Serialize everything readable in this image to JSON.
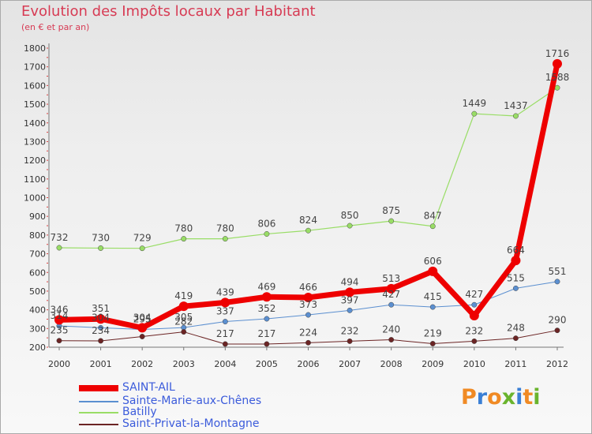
{
  "header": {
    "title": "Evolution des Impôts locaux par Habitant",
    "subtitle": "(en € et par an)"
  },
  "logo": {
    "text": "Proxiti",
    "letters": [
      {
        "ch": "P",
        "color": "#f08a24"
      },
      {
        "ch": "r",
        "color": "#3a7fd5"
      },
      {
        "ch": "o",
        "color": "#f08a24"
      },
      {
        "ch": "x",
        "color": "#6ab42d"
      },
      {
        "ch": "i",
        "color": "#3a7fd5"
      },
      {
        "ch": "t",
        "color": "#f08a24"
      },
      {
        "ch": "i",
        "color": "#6ab42d"
      }
    ]
  },
  "chart_data": {
    "type": "line",
    "title": "Evolution des Impôts locaux par Habitant",
    "subtitle": "(en € et par an)",
    "x": [
      "2000",
      "2001",
      "2002",
      "2003",
      "2004",
      "2005",
      "2006",
      "2007",
      "2008",
      "2009",
      "2010",
      "2011",
      "2012"
    ],
    "ylim": [
      200,
      1800
    ],
    "yticks": [
      200,
      300,
      400,
      500,
      600,
      700,
      800,
      900,
      1000,
      1100,
      1200,
      1300,
      1400,
      1500,
      1600,
      1700,
      1800
    ],
    "grid": false,
    "legend_position": "bottom-left",
    "series": [
      {
        "name": "SAINT-AIL",
        "color": "#ee0000",
        "width": 7,
        "values": [
          346,
          351,
          304,
          419,
          439,
          469,
          466,
          494,
          513,
          606,
          369,
          664,
          1716
        ],
        "labels": [
          "346",
          "351",
          "304",
          "419",
          "439",
          "469",
          "466",
          "494",
          "513",
          "606",
          "",
          "664",
          "1716"
        ]
      },
      {
        "name": "Sainte-Marie-aux-Chênes",
        "color": "#5b8fd0",
        "width": 1,
        "values": [
          314,
          304,
          295,
          305,
          337,
          352,
          373,
          397,
          427,
          415,
          427,
          515,
          551
        ],
        "labels": [
          "314",
          "304",
          "295",
          "305",
          "337",
          "352",
          "373",
          "397",
          "427",
          "415",
          "427",
          "515",
          "551"
        ]
      },
      {
        "name": "Batilly",
        "color": "#99dd66",
        "width": 1.2,
        "values": [
          732,
          730,
          729,
          780,
          780,
          806,
          824,
          850,
          875,
          847,
          1449,
          1437,
          1588
        ],
        "labels": [
          "732",
          "730",
          "729",
          "780",
          "780",
          "806",
          "824",
          "850",
          "875",
          "847",
          "1449",
          "1437",
          "1588"
        ]
      },
      {
        "name": "Saint-Privat-la-Montagne",
        "color": "#6b2424",
        "width": 1,
        "values": [
          235,
          234,
          257,
          282,
          217,
          217,
          224,
          232,
          240,
          219,
          232,
          248,
          290
        ],
        "labels": [
          "235",
          "234",
          "",
          "282",
          "217",
          "217",
          "224",
          "232",
          "240",
          "219",
          "232",
          "248",
          "290"
        ]
      }
    ]
  }
}
